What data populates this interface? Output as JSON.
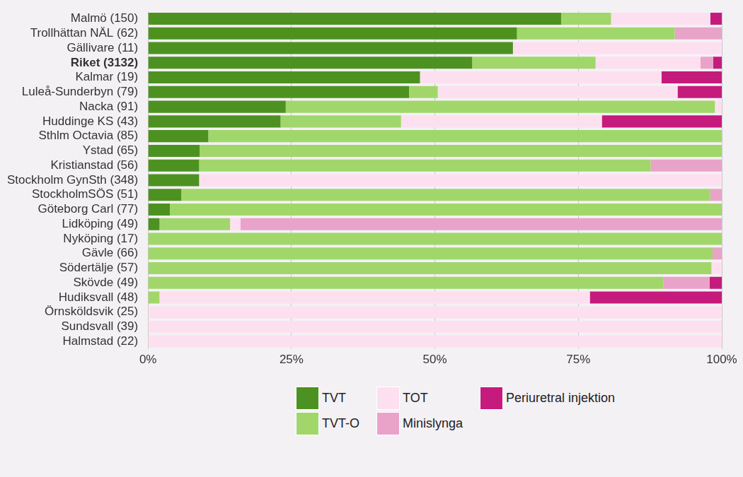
{
  "chart_data": {
    "type": "bar",
    "orientation": "horizontal",
    "stacked": true,
    "grid": true,
    "legend": "bottom",
    "categories": [
      "Malmö (150)",
      "Trollhättan NÄL (62)",
      "Gällivare (11)",
      "Riket (3132)",
      "Kalmar (19)",
      "Luleå-Sunderbyn (79)",
      "Nacka (91)",
      "Huddinge KS (43)",
      "Sthlm Octavia (85)",
      "Ystad (65)",
      "Kristianstad (56)",
      "Stockholm GynSth (348)",
      "StockholmSÖS (51)",
      "Göteborg Carl (77)",
      "Lidköping (49)",
      "Nyköping (17)",
      "Gävle (66)",
      "Södertälje (57)",
      "Skövde (49)",
      "Hudiksvall (48)",
      "Örnsköldsvik (25)",
      "Sundsvall (39)",
      "Halmstad (22)"
    ],
    "series": [
      {
        "name": "TVT",
        "color": "#4d9221",
        "values": [
          72,
          64.3,
          63.6,
          56.5,
          47.4,
          45.5,
          24,
          23.1,
          10.5,
          9,
          8.9,
          8.9,
          5.8,
          3.8,
          2,
          0,
          0,
          0,
          0,
          0,
          0,
          0,
          0
        ]
      },
      {
        "name": "TVT-O",
        "color": "#a1d76a",
        "values": [
          8.7,
          27.5,
          0,
          21.5,
          0,
          5,
          74.8,
          21,
          89.5,
          91,
          78.7,
          0,
          92.2,
          96.2,
          12.3,
          100,
          98.4,
          98.2,
          89.8,
          2,
          0,
          0,
          0
        ]
      },
      {
        "name": "TOT",
        "color": "#fde0ef",
        "values": [
          17.3,
          0,
          36.4,
          18.3,
          42.1,
          41.8,
          1.2,
          35,
          0,
          0,
          0,
          91.1,
          0,
          0,
          1.8,
          0,
          0,
          1.8,
          0,
          75,
          100,
          100,
          100
        ]
      },
      {
        "name": "Minislynga",
        "color": "#e9a3c9",
        "values": [
          0,
          8.2,
          0,
          2.2,
          0,
          0,
          0,
          0,
          0,
          0,
          12.4,
          0,
          2,
          0,
          83.9,
          0,
          1.6,
          0,
          8.1,
          0,
          0,
          0,
          0
        ]
      },
      {
        "name": "Periuretral injektion",
        "color": "#c51b7d",
        "values": [
          2,
          0,
          0,
          1.5,
          10.5,
          7.7,
          0,
          20.9,
          0,
          0,
          0,
          0,
          0,
          0,
          0,
          0,
          0,
          0,
          2.1,
          23,
          0,
          0,
          0
        ]
      }
    ],
    "xlim": [
      0,
      100
    ],
    "xticks": [
      {
        "value": 0,
        "label": "0%"
      },
      {
        "value": 25,
        "label": "25%"
      },
      {
        "value": 50,
        "label": "50%"
      },
      {
        "value": 75,
        "label": "75%"
      },
      {
        "value": 100,
        "label": "100%"
      }
    ]
  }
}
